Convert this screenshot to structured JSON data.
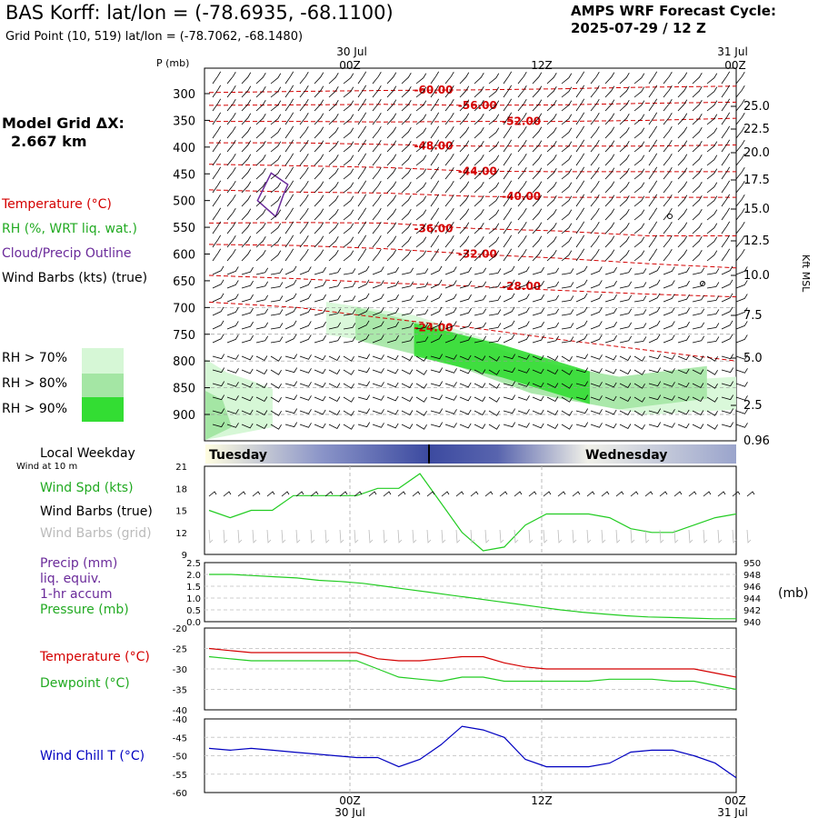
{
  "header": {
    "title": "BAS Korff:  lat/lon = (-78.6935, -68.1100)",
    "grid_point": "Grid Point (10, 519) lat/lon = (-78.7062, -68.1480)",
    "cycle_line1": "AMPS WRF Forecast Cycle:",
    "cycle_line2": "2025-07-29 / 12  Z"
  },
  "sidebar": {
    "model_grid_label": "Model Grid ΔX:",
    "model_grid_value": "2.667 km",
    "temperature_label": "Temperature (°C)",
    "rh_label": "RH (%, WRT liq. wat.)",
    "cloud_label": "Cloud/Precip Outline",
    "wind_barbs_label": "Wind Barbs (kts) (true)",
    "rh70": "RH > 70%",
    "rh80": "RH > 80%",
    "rh90": "RH > 90%"
  },
  "colors": {
    "temperature": "#d40000",
    "rh_label": "#22aa22",
    "cloud": "#6a2a9a",
    "rh70": "#d6f7d6",
    "rh80": "#a4e6a4",
    "rh90": "#33dd33",
    "wind_chill": "#0000c0",
    "dewpoint": "#22cc22",
    "pressure": "#22cc22",
    "wind_speed": "#22cc22",
    "grid_barbs": "#bbbbbb"
  },
  "time_axis": {
    "top_dates": [
      "30 Jul",
      "31 Jul"
    ],
    "tick_labels": [
      "00Z",
      "12Z",
      "00Z"
    ],
    "bottom_dates": [
      "30 Jul",
      "31 Jul"
    ]
  },
  "weekday_bar": {
    "label": "Local Weekday",
    "sublabel": "Wind at 10 m",
    "days": [
      "Tuesday",
      "Wednesday"
    ]
  },
  "panels": {
    "wind": {
      "label_spd": "Wind Spd (kts)",
      "label_barbs": "Wind Barbs (true)",
      "label_grid": "Wind Barbs (grid)"
    },
    "precip": {
      "label1": "Precip (mm)",
      "label2": "liq. equiv.",
      "label3": "1-hr accum",
      "label4": "Pressure (mb)",
      "right_unit": "(mb)"
    },
    "temp": {
      "label_t": "Temperature (°C)",
      "label_td": "Dewpoint (°C)"
    },
    "chill": {
      "label": "Wind Chill T (°C)"
    }
  },
  "chart_data": [
    {
      "type": "line",
      "panel": "cross-section",
      "y_label": "P (mb)",
      "y_right_label": "Kft MSL",
      "x_hours": [
        0,
        36
      ],
      "pressure_ticks": [
        "300",
        "350",
        "400",
        "450",
        "500",
        "550",
        "600",
        "650",
        "700",
        "750",
        "800",
        "850",
        "900"
      ],
      "height_ticks": [
        "25.0",
        "22.5",
        "20.0",
        "17.5",
        "15.0",
        "12.5",
        "10.0",
        "7.5",
        "5.0",
        "2.5",
        "0.96"
      ],
      "isotherms": [
        {
          "label": "-60.00",
          "points": [
            [
              0,
              298
            ],
            [
              6,
              296
            ],
            [
              12,
              294
            ],
            [
              18,
              293
            ],
            [
              24,
              291
            ],
            [
              30,
              288
            ],
            [
              36,
              286
            ]
          ]
        },
        {
          "label": "-56.00",
          "points": [
            [
              0,
              322
            ],
            [
              6,
              321
            ],
            [
              12,
              320
            ],
            [
              18,
              322
            ],
            [
              24,
              321
            ],
            [
              30,
              318
            ],
            [
              36,
              316
            ]
          ]
        },
        {
          "label": "-52.00",
          "points": [
            [
              0,
              352
            ],
            [
              6,
              352
            ],
            [
              12,
              353
            ],
            [
              18,
              352
            ],
            [
              24,
              352
            ],
            [
              30,
              350
            ],
            [
              36,
              346
            ]
          ]
        },
        {
          "label": "-48.00",
          "points": [
            [
              0,
              392
            ],
            [
              6,
              392
            ],
            [
              12,
              395
            ],
            [
              18,
              398
            ],
            [
              24,
              398
            ],
            [
              30,
              398
            ],
            [
              36,
              396
            ]
          ]
        },
        {
          "label": "-44.00",
          "points": [
            [
              0,
              432
            ],
            [
              6,
              435
            ],
            [
              12,
              438
            ],
            [
              18,
              445
            ],
            [
              24,
              446
            ],
            [
              30,
              446
            ],
            [
              36,
              446
            ]
          ]
        },
        {
          "label": "-40.00",
          "points": [
            [
              0,
              480
            ],
            [
              6,
              484
            ],
            [
              12,
              486
            ],
            [
              18,
              492
            ],
            [
              24,
              494
            ],
            [
              30,
              494
            ],
            [
              36,
              494
            ]
          ]
        },
        {
          "label": "-36.00",
          "points": [
            [
              0,
              542
            ],
            [
              6,
              541
            ],
            [
              12,
              542
            ],
            [
              18,
              552
            ],
            [
              24,
              557
            ],
            [
              30,
              566
            ],
            [
              36,
              566
            ]
          ]
        },
        {
          "label": "-32.00",
          "points": [
            [
              0,
              582
            ],
            [
              6,
              584
            ],
            [
              12,
              590
            ],
            [
              18,
              600
            ],
            [
              24,
              608
            ],
            [
              30,
              618
            ],
            [
              36,
              626
            ]
          ]
        },
        {
          "label": "-28.00",
          "points": [
            [
              0,
              640
            ],
            [
              6,
              646
            ],
            [
              12,
              654
            ],
            [
              18,
              660
            ],
            [
              24,
              668
            ],
            [
              30,
              675
            ],
            [
              36,
              680
            ]
          ]
        },
        {
          "label": "-24.00",
          "points": [
            [
              0,
              690
            ],
            [
              6,
              700
            ],
            [
              12,
              720
            ],
            [
              18,
              738
            ],
            [
              24,
              760
            ],
            [
              30,
              780
            ],
            [
              36,
              800
            ]
          ]
        }
      ],
      "rh_bands": [
        {
          "level": "70",
          "points": [
            [
              8,
              720
            ],
            [
              14,
              745
            ],
            [
              20,
              800
            ],
            [
              24,
              840
            ],
            [
              30,
              870
            ],
            [
              36,
              860
            ]
          ]
        },
        {
          "level": "80",
          "points": [
            [
              10,
              730
            ],
            [
              16,
              770
            ],
            [
              22,
              830
            ],
            [
              28,
              860
            ],
            [
              34,
              840
            ]
          ]
        },
        {
          "level": "90",
          "points": [
            [
              14,
              760
            ],
            [
              20,
              800
            ],
            [
              26,
              850
            ]
          ]
        }
      ],
      "cloud_outline_hours": [
        3,
        6
      ],
      "cloud_outline_pressure": [
        440,
        530
      ]
    },
    {
      "type": "line",
      "panel": "wind",
      "y_range": [
        9,
        21
      ],
      "y_ticks": [
        "21",
        "18",
        "15",
        "12",
        "9"
      ],
      "series": [
        {
          "name": "Wind Spd (kts)",
          "values": [
            15,
            14,
            15,
            15,
            17,
            17,
            17,
            17,
            18,
            18,
            20,
            16,
            12,
            9.5,
            10,
            13,
            14.5,
            14.5,
            14.5,
            14,
            12.5,
            12,
            12,
            13,
            14,
            14.5
          ]
        }
      ]
    },
    {
      "type": "line",
      "panel": "precip-pressure",
      "y_left_range": [
        0,
        2.5
      ],
      "y_left_ticks": [
        "2.5",
        "2.0",
        "1.5",
        "1.0",
        "0.5",
        "0.0"
      ],
      "y_right_range": [
        940,
        950
      ],
      "y_right_ticks": [
        "950",
        "948",
        "946",
        "944",
        "942",
        "940"
      ],
      "series": [
        {
          "name": "Pressure (mb)",
          "values": [
            948.0,
            948.0,
            947.8,
            947.6,
            947.4,
            947.0,
            946.8,
            946.5,
            946.0,
            945.5,
            945.0,
            944.5,
            944.0,
            943.5,
            943.0,
            942.5,
            942.0,
            941.6,
            941.3,
            941.0,
            940.8,
            940.7,
            940.6,
            940.5,
            940.5
          ]
        }
      ]
    },
    {
      "type": "line",
      "panel": "temp-dewpoint",
      "y_range": [
        -40,
        -20
      ],
      "y_ticks": [
        "-20",
        "-25",
        "-30",
        "-35",
        "-40"
      ],
      "series": [
        {
          "name": "Temperature (°C)",
          "values": [
            -25,
            -25.5,
            -26,
            -26,
            -26,
            -26,
            -26,
            -26,
            -27.5,
            -28,
            -28,
            -27.5,
            -27,
            -27,
            -28.5,
            -29.5,
            -30,
            -30,
            -30,
            -30,
            -30,
            -30,
            -30,
            -30,
            -31,
            -32
          ]
        },
        {
          "name": "Dewpoint (°C)",
          "values": [
            -27,
            -27.5,
            -28,
            -28,
            -28,
            -28,
            -28,
            -28,
            -30,
            -32,
            -32.5,
            -33,
            -32,
            -32,
            -33,
            -33,
            -33,
            -33,
            -33,
            -32.5,
            -32.5,
            -32.5,
            -33,
            -33,
            -34,
            -35
          ]
        }
      ]
    },
    {
      "type": "line",
      "panel": "wind-chill",
      "y_range": [
        -60,
        -40
      ],
      "y_ticks": [
        "-40",
        "-45",
        "-50",
        "-55",
        "-60"
      ],
      "series": [
        {
          "name": "Wind Chill T (°C)",
          "values": [
            -48,
            -48.5,
            -48,
            -48.5,
            -49,
            -49.5,
            -50,
            -50.5,
            -50.5,
            -53,
            -51,
            -47,
            -42,
            -43,
            -45,
            -51,
            -53,
            -53,
            -53,
            -52,
            -49,
            -48.5,
            -48.5,
            -50,
            -52,
            -56
          ]
        }
      ]
    }
  ]
}
